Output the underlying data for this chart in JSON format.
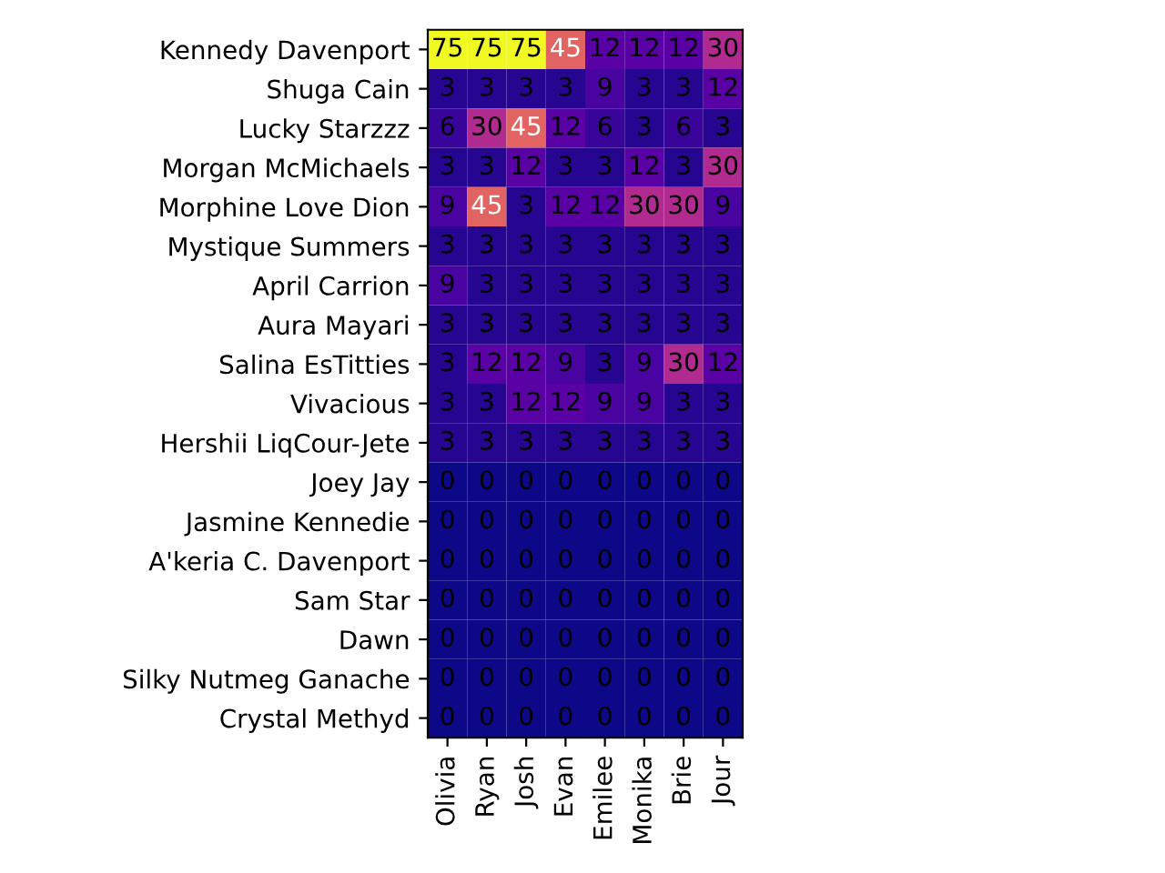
{
  "chart_data": {
    "type": "heatmap",
    "categories": [
      "Olivia",
      "Ryan",
      "Josh",
      "Evan",
      "Emilee",
      "Monika",
      "Brie",
      "Jour"
    ],
    "y_categories": [
      "Kennedy Davenport",
      "Shuga Cain",
      "Lucky Starzzz",
      "Morgan McMichaels",
      "Morphine Love Dion",
      "Mystique Summers",
      "April Carrion",
      "Aura Mayari",
      "Salina EsTitties",
      "Vivacious",
      "Hershii LiqCour-Jete",
      "Joey Jay",
      "Jasmine Kennedie",
      "A'keria C. Davenport",
      "Sam Star",
      "Dawn",
      "Silky Nutmeg Ganache",
      "Crystal Methyd"
    ],
    "cells": [
      [
        75,
        75,
        75,
        45,
        12,
        12,
        12,
        30
      ],
      [
        3,
        3,
        3,
        3,
        9,
        3,
        3,
        12
      ],
      [
        6,
        30,
        45,
        12,
        6,
        3,
        6,
        3
      ],
      [
        3,
        3,
        12,
        3,
        3,
        12,
        3,
        30
      ],
      [
        9,
        45,
        3,
        12,
        12,
        30,
        30,
        9
      ],
      [
        3,
        3,
        3,
        3,
        3,
        3,
        3,
        3
      ],
      [
        9,
        3,
        3,
        3,
        3,
        3,
        3,
        3
      ],
      [
        3,
        3,
        3,
        3,
        3,
        3,
        3,
        3
      ],
      [
        3,
        12,
        12,
        9,
        3,
        9,
        30,
        12
      ],
      [
        3,
        3,
        12,
        12,
        9,
        9,
        3,
        3
      ],
      [
        3,
        3,
        3,
        3,
        3,
        3,
        3,
        3
      ],
      [
        0,
        0,
        0,
        0,
        0,
        0,
        0,
        0
      ],
      [
        0,
        0,
        0,
        0,
        0,
        0,
        0,
        0
      ],
      [
        0,
        0,
        0,
        0,
        0,
        0,
        0,
        0
      ],
      [
        0,
        0,
        0,
        0,
        0,
        0,
        0,
        0
      ],
      [
        0,
        0,
        0,
        0,
        0,
        0,
        0,
        0
      ],
      [
        0,
        0,
        0,
        0,
        0,
        0,
        0,
        0
      ],
      [
        0,
        0,
        0,
        0,
        0,
        0,
        0,
        0
      ]
    ],
    "data_labels": true
  }
}
